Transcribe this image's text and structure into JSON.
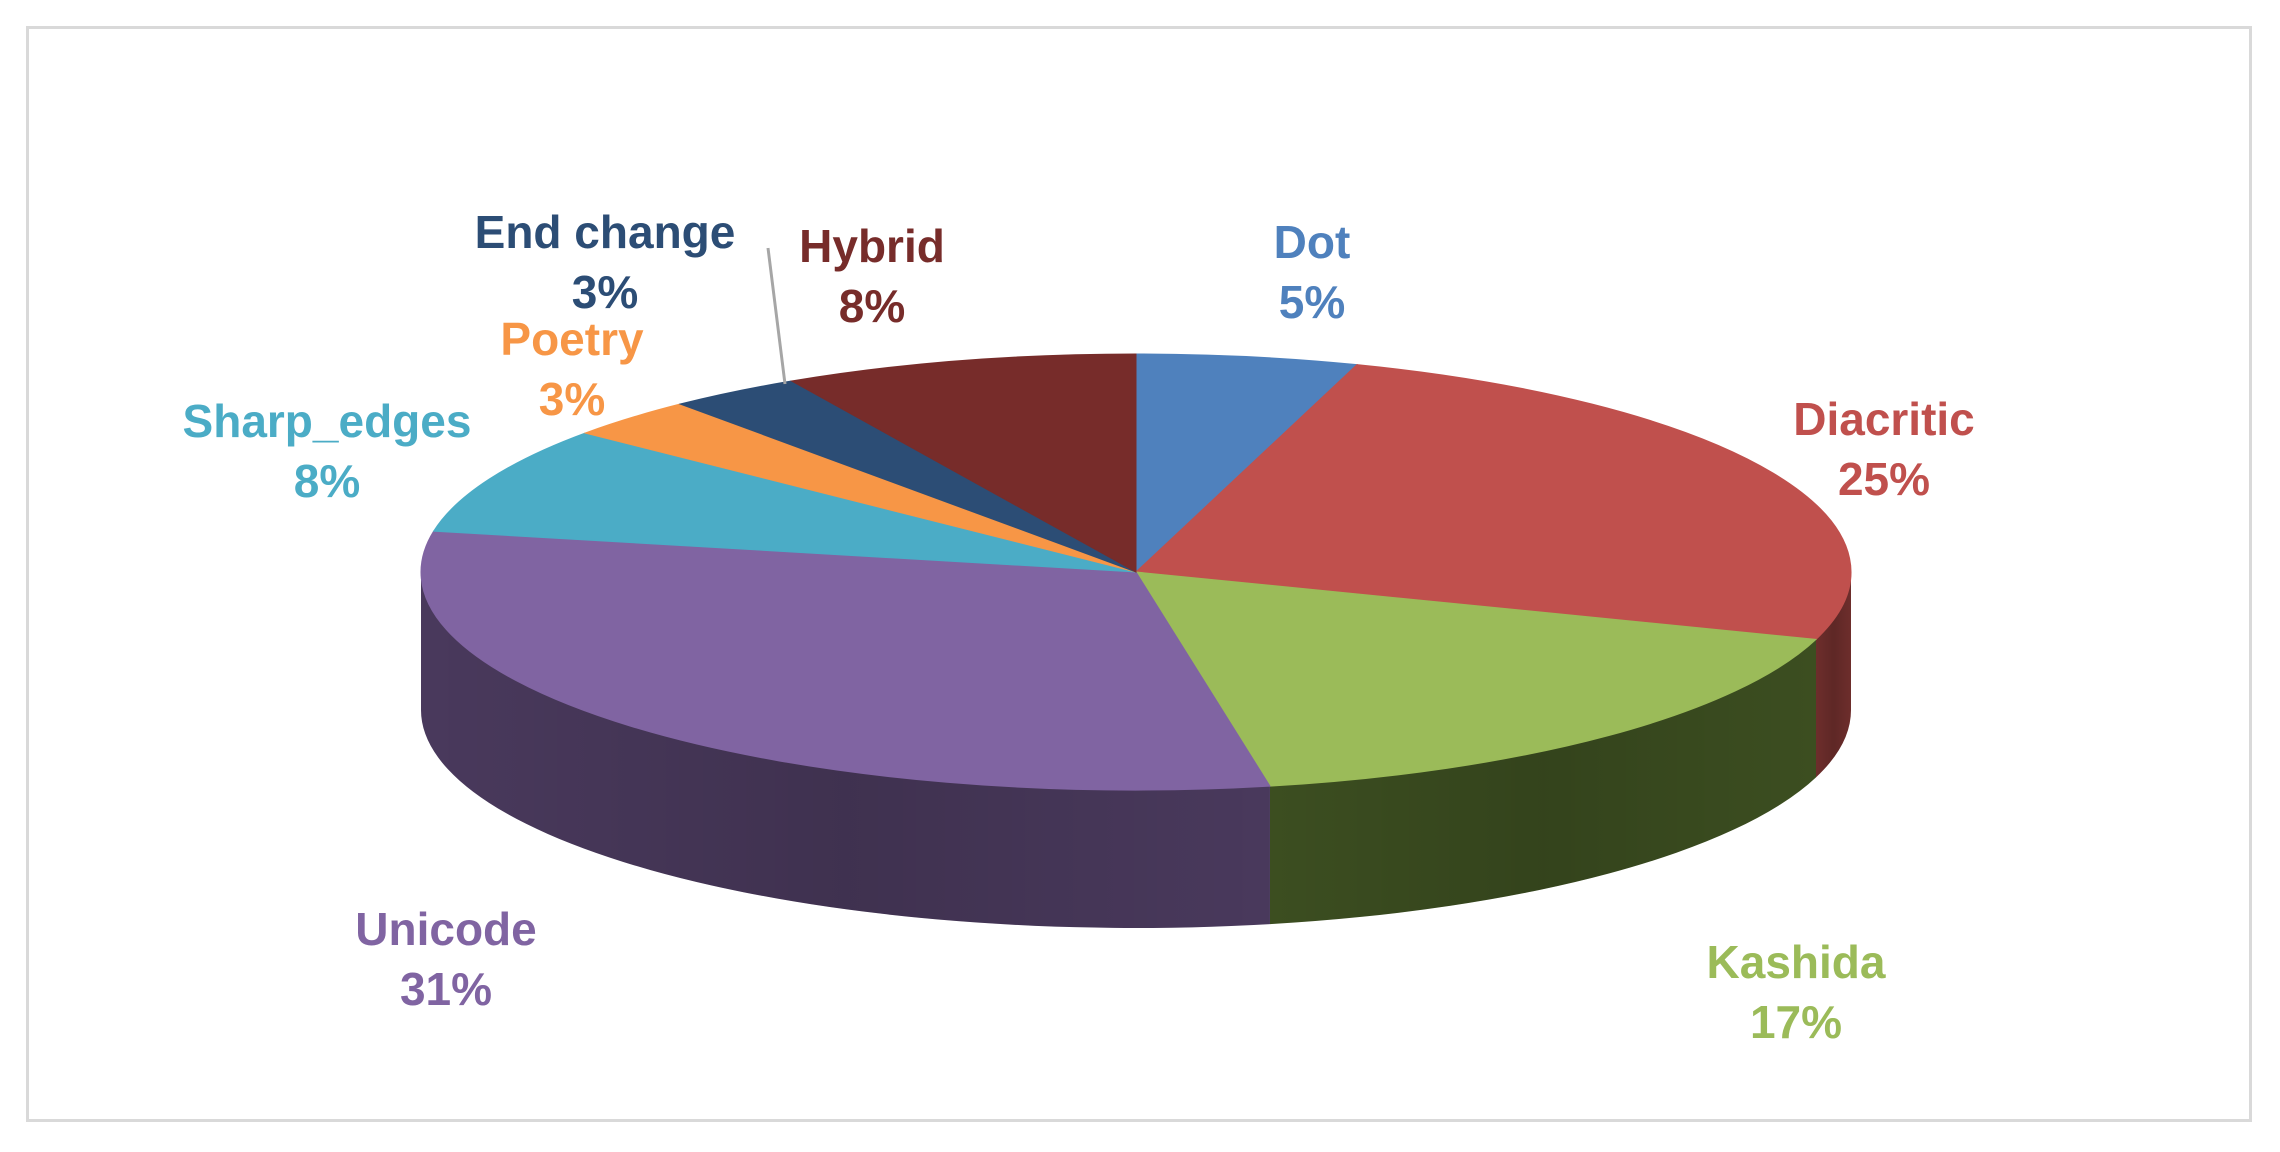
{
  "chart_data": {
    "type": "pie",
    "style": "3d",
    "title": "",
    "legend": "none",
    "slices": [
      {
        "name": "Dot",
        "value": 5,
        "label": "5%",
        "color": "#4f81bd",
        "side": "#2f4d71"
      },
      {
        "name": "Diacritic",
        "value": 25,
        "label": "25%",
        "color": "#c0504d",
        "side": "#73302e"
      },
      {
        "name": "Kashida",
        "value": 17,
        "label": "17%",
        "color": "#9bbb59",
        "side": "#3f5222"
      },
      {
        "name": "Unicode",
        "value": 31,
        "label": "31%",
        "color": "#8064a2",
        "side": "#4d3c61"
      },
      {
        "name": "Sharp_edges",
        "value": 8,
        "label": "8%",
        "color": "#4bacc6",
        "side": "#2d6777"
      },
      {
        "name": "Poetry",
        "value": 3,
        "label": "3%",
        "color": "#f79646",
        "side": "#945a2a"
      },
      {
        "name": "End change",
        "value": 3,
        "label": "3%",
        "color": "#2c4d75",
        "side": "#1a2e46"
      },
      {
        "name": "Hybrid",
        "value": 8,
        "label": "8%",
        "color": "#772c2a",
        "side": "#471a19"
      }
    ]
  }
}
